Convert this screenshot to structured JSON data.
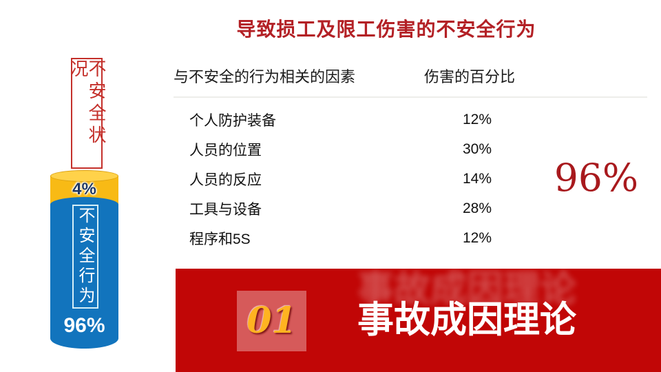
{
  "slide": {
    "title": "导致损工及限工伤害的不安全行为"
  },
  "cylinder": {
    "condition_label": "不安全状况",
    "top_value": "4%",
    "body_label": "不安全行为",
    "bottom_value": "96%",
    "colors": {
      "yellow": "#F8BA15",
      "blue": "#1274BD",
      "label_red": "#C4302B",
      "navy_text": "#1F3864"
    }
  },
  "table": {
    "headers": {
      "factor": "与不安全的行为相关的因素",
      "percent": "伤害的百分比"
    },
    "rows": [
      {
        "factor": "个人防护装备",
        "percent": "12%"
      },
      {
        "factor": "人员的位置",
        "percent": "30%"
      },
      {
        "factor": "人员的反应",
        "percent": "14%"
      },
      {
        "factor": "工具与设备",
        "percent": "28%"
      },
      {
        "factor": "程序和5S",
        "percent": "12%"
      }
    ]
  },
  "highlight": {
    "value": "96%",
    "color": "#A8191D"
  },
  "banner": {
    "number": "01",
    "title": "事故成因理论",
    "background": "#C10606",
    "number_color": "#FFB321"
  },
  "chart_data": [
    {
      "type": "bar",
      "title": "不安全状况 vs 不安全行为 (堆叠圆柱)",
      "categories": [
        "不安全状况",
        "不安全行为"
      ],
      "values": [
        4,
        96
      ],
      "unit": "%",
      "colors": [
        "#F8BA15",
        "#1274BD"
      ],
      "annotations": [
        "4%",
        "96%"
      ]
    },
    {
      "type": "table",
      "title": "导致损工及限工伤害的不安全行为",
      "columns": [
        "与不安全的行为相关的因素",
        "伤害的百分比"
      ],
      "rows": [
        [
          "个人防护装备",
          "12%"
        ],
        [
          "人员的位置",
          "30%"
        ],
        [
          "人员的反应",
          "14%"
        ],
        [
          "工具与设备",
          "28%"
        ],
        [
          "程序和5S",
          "12%"
        ]
      ],
      "total_highlight": "96%"
    }
  ]
}
